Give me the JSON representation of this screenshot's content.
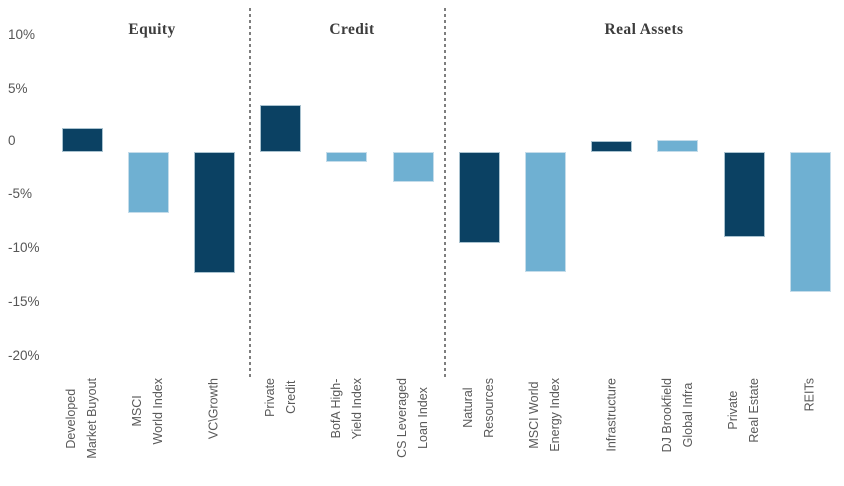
{
  "chart_data": {
    "type": "bar",
    "title": "",
    "xlabel": "",
    "ylabel": "",
    "grid": false,
    "legend": null,
    "ylim": [
      -20,
      10
    ],
    "palette": {
      "dark": "#0b4163",
      "light": "#6fb0d2"
    },
    "y_axis": {
      "ticks": [
        {
          "label": "10%",
          "value": 10
        },
        {
          "label": "5%",
          "value": 5
        },
        {
          "label": "0",
          "value": 0
        },
        {
          "label": "-5%",
          "value": -5
        },
        {
          "label": "-10%",
          "value": -10
        },
        {
          "label": "-15%",
          "value": -15
        },
        {
          "label": "-20%",
          "value": -20
        }
      ]
    },
    "sections": [
      {
        "label": "Equity"
      },
      {
        "label": "Credit"
      },
      {
        "label": "Real Assets"
      }
    ],
    "points": [
      {
        "section": "Equity",
        "label_lines": [
          "Developed",
          "Market Buyout"
        ],
        "category": "Developed Market Buyout",
        "value": 2.2,
        "shade": "dark"
      },
      {
        "section": "Equity",
        "label_lines": [
          "MSCI",
          "World Index"
        ],
        "category": "MSCI World Index",
        "value": -5.7,
        "shade": "light"
      },
      {
        "section": "Equity",
        "label_lines": [
          "VC\\Growth"
        ],
        "category": "VC\\Growth",
        "value": -11.3,
        "shade": "dark"
      },
      {
        "section": "Credit",
        "label_lines": [
          "Private",
          "Credit"
        ],
        "category": "Private Credit",
        "value": 4.4,
        "shade": "dark"
      },
      {
        "section": "Credit",
        "label_lines": [
          "BofA High-",
          "Yield Index"
        ],
        "category": "BofA High-Yield Index",
        "value": -1.0,
        "shade": "light"
      },
      {
        "section": "Credit",
        "label_lines": [
          "CS Leveraged",
          "Loan Index"
        ],
        "category": "CS Leveraged Loan Index",
        "value": -2.8,
        "shade": "light"
      },
      {
        "section": "Real Assets",
        "label_lines": [
          "Natural",
          "Resources"
        ],
        "category": "Natural Resources",
        "value": -8.5,
        "shade": "dark"
      },
      {
        "section": "Real Assets",
        "label_lines": [
          "MSCI World",
          "Energy Index"
        ],
        "category": "MSCI World Energy Index",
        "value": -11.2,
        "shade": "light"
      },
      {
        "section": "Real Assets",
        "label_lines": [
          "Infrastructure"
        ],
        "category": "Infrastructure",
        "value": 1.0,
        "shade": "dark"
      },
      {
        "section": "Real Assets",
        "label_lines": [
          "DJ Brookfield",
          "Global Infra"
        ],
        "category": "DJ Brookfield Global Infra",
        "value": 1.1,
        "shade": "light"
      },
      {
        "section": "Real Assets",
        "label_lines": [
          "Private",
          "Real Estate"
        ],
        "category": "Private Real Estate",
        "value": -8.0,
        "shade": "dark"
      },
      {
        "section": "Real Assets",
        "label_lines": [
          "REITs"
        ],
        "category": "REITs",
        "value": -13.1,
        "shade": "light"
      }
    ]
  }
}
